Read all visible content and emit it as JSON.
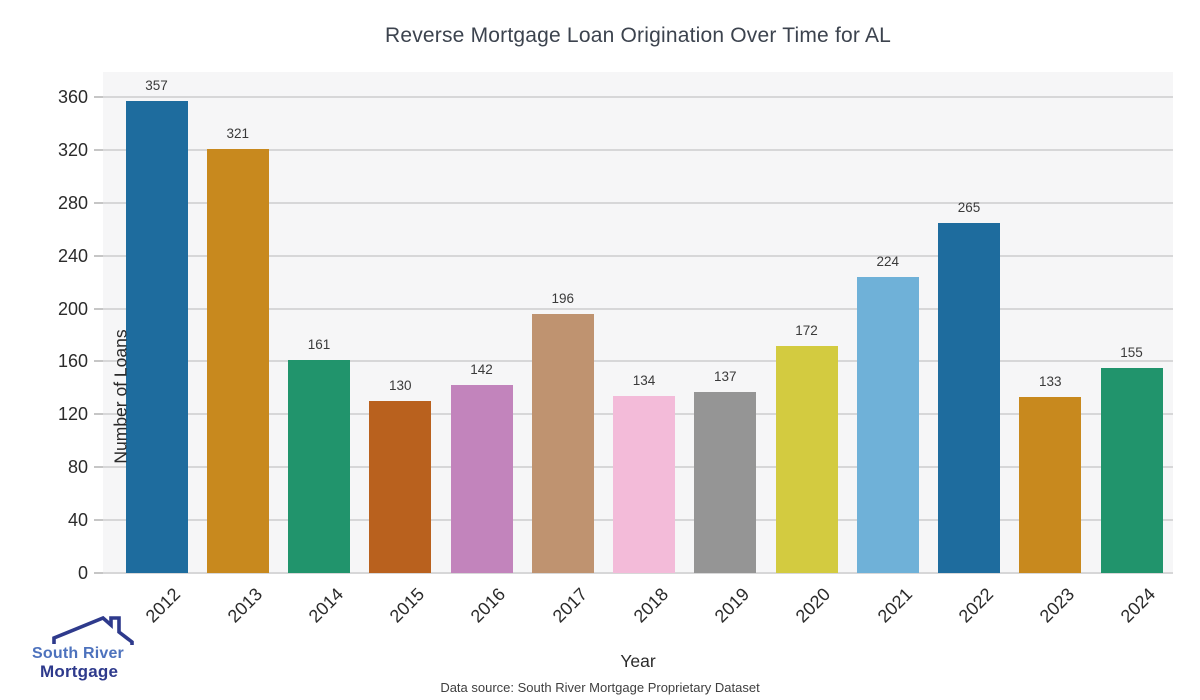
{
  "title": "Reverse Mortgage Loan Origination Over Time for AL",
  "chart_data": {
    "type": "bar",
    "title": "Reverse Mortgage Loan Origination Over Time for AL",
    "xlabel": "Year",
    "ylabel": "Number of Loans",
    "categories": [
      "2012",
      "2013",
      "2014",
      "2015",
      "2016",
      "2017",
      "2018",
      "2019",
      "2020",
      "2021",
      "2022",
      "2023",
      "2024"
    ],
    "values": [
      357,
      321,
      161,
      130,
      142,
      196,
      134,
      137,
      172,
      224,
      265,
      133,
      155
    ],
    "bar_colors": [
      "#1e6c9e",
      "#c8891e",
      "#21946c",
      "#b9611e",
      "#c284bc",
      "#bf9370",
      "#f3bbd9",
      "#959595",
      "#d3cb40",
      "#6fb1d8",
      "#1e6c9e",
      "#c8891e",
      "#21946c"
    ],
    "value_labels": [
      "357",
      "321",
      "161",
      "130",
      "142",
      "196",
      "134",
      "137",
      "172",
      "224",
      "265",
      "133",
      "155"
    ],
    "yticks": [
      0,
      40,
      80,
      120,
      160,
      200,
      240,
      280,
      320,
      360
    ],
    "ylim": [
      0,
      379
    ],
    "grid": "horizontal",
    "legend": "none",
    "plot_bg_color": "#f6f6f7",
    "gridline_color": "#d7d7d8"
  },
  "footer": {
    "source_note": "Data source: South River Mortgage Proprietary Dataset"
  },
  "logo": {
    "line1": "South River",
    "line2": "Mortgage",
    "line1_color": "#4d72bd",
    "line2_color": "#2e3a8c",
    "house_color": "#2e3a8c"
  }
}
